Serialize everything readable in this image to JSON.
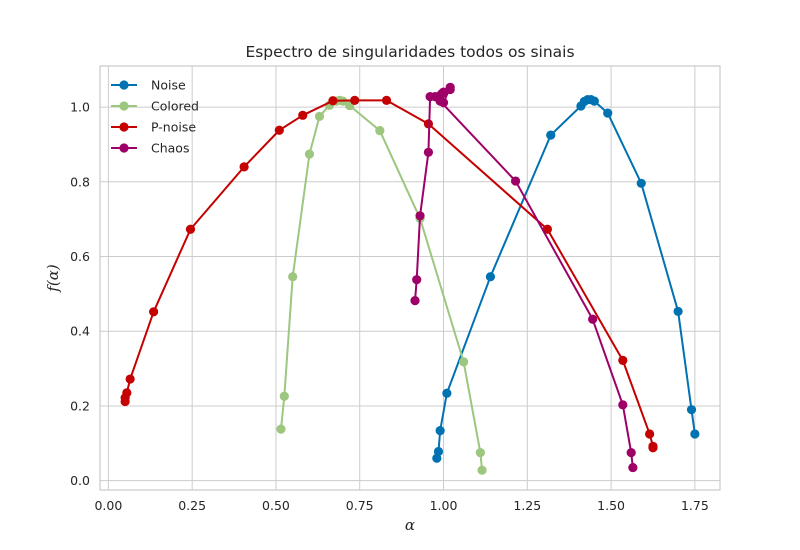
{
  "chart_data": {
    "type": "line",
    "title": "Espectro de singularidades todos os sinais",
    "xlabel": "α",
    "ylabel": "f(α)",
    "xlim": [
      -0.025,
      1.825
    ],
    "ylim": [
      -0.025,
      1.11
    ],
    "xticks": [
      0.0,
      0.25,
      0.5,
      0.75,
      1.0,
      1.25,
      1.5,
      1.75
    ],
    "xtick_labels": [
      "0.00",
      "0.25",
      "0.50",
      "0.75",
      "1.00",
      "1.25",
      "1.50",
      "1.75"
    ],
    "yticks": [
      0.0,
      0.2,
      0.4,
      0.6,
      0.8,
      1.0
    ],
    "ytick_labels": [
      "0.0",
      "0.2",
      "0.4",
      "0.6",
      "0.8",
      "1.0"
    ],
    "grid": true,
    "legend_position": "top-left",
    "series": [
      {
        "name": "Noise",
        "color": "#0072B2",
        "x": [
          0.98,
          0.985,
          0.99,
          1.01,
          1.14,
          1.32,
          1.41,
          1.42,
          1.43,
          1.44,
          1.45,
          1.49,
          1.59,
          1.7,
          1.74,
          1.75
        ],
        "y": [
          0.06,
          0.078,
          0.134,
          0.234,
          0.546,
          0.925,
          1.003,
          1.015,
          1.02,
          1.02,
          1.016,
          0.984,
          0.796,
          0.453,
          0.19,
          0.125
        ]
      },
      {
        "name": "Colored",
        "color": "#9DC67F",
        "x": [
          0.515,
          0.525,
          0.55,
          0.6,
          0.63,
          0.66,
          0.68,
          0.69,
          0.7,
          0.72,
          0.81,
          0.93,
          1.06,
          1.11,
          1.115
        ],
        "y": [
          0.138,
          0.226,
          0.546,
          0.874,
          0.975,
          1.005,
          1.016,
          1.018,
          1.016,
          1.004,
          0.937,
          0.702,
          0.318,
          0.075,
          0.028
        ]
      },
      {
        "name": "P-noise",
        "color": "#C40000",
        "x": [
          0.05,
          0.05,
          0.055,
          0.065,
          0.135,
          0.245,
          0.405,
          0.51,
          0.58,
          0.67,
          0.735,
          0.83,
          0.955,
          1.31,
          1.535,
          1.615,
          1.625,
          1.625
        ],
        "y": [
          0.212,
          0.222,
          0.235,
          0.272,
          0.452,
          0.673,
          0.84,
          0.938,
          0.978,
          1.017,
          1.018,
          1.018,
          0.955,
          0.673,
          0.322,
          0.125,
          0.092,
          0.088
        ]
      },
      {
        "name": "Chaos",
        "color": "#9E0068",
        "x": [
          0.915,
          0.92,
          0.93,
          0.955,
          0.96,
          0.975,
          0.985,
          0.99,
          0.995,
          1.0,
          1.02,
          1.02,
          1.0,
          0.99,
          1.215,
          1.445,
          1.535,
          1.56,
          1.565
        ],
        "y": [
          0.482,
          0.538,
          0.709,
          0.879,
          1.028,
          1.028,
          1.024,
          1.031,
          1.036,
          1.04,
          1.047,
          1.053,
          1.012,
          1.016,
          0.802,
          0.432,
          0.203,
          0.075,
          0.035
        ]
      }
    ]
  }
}
